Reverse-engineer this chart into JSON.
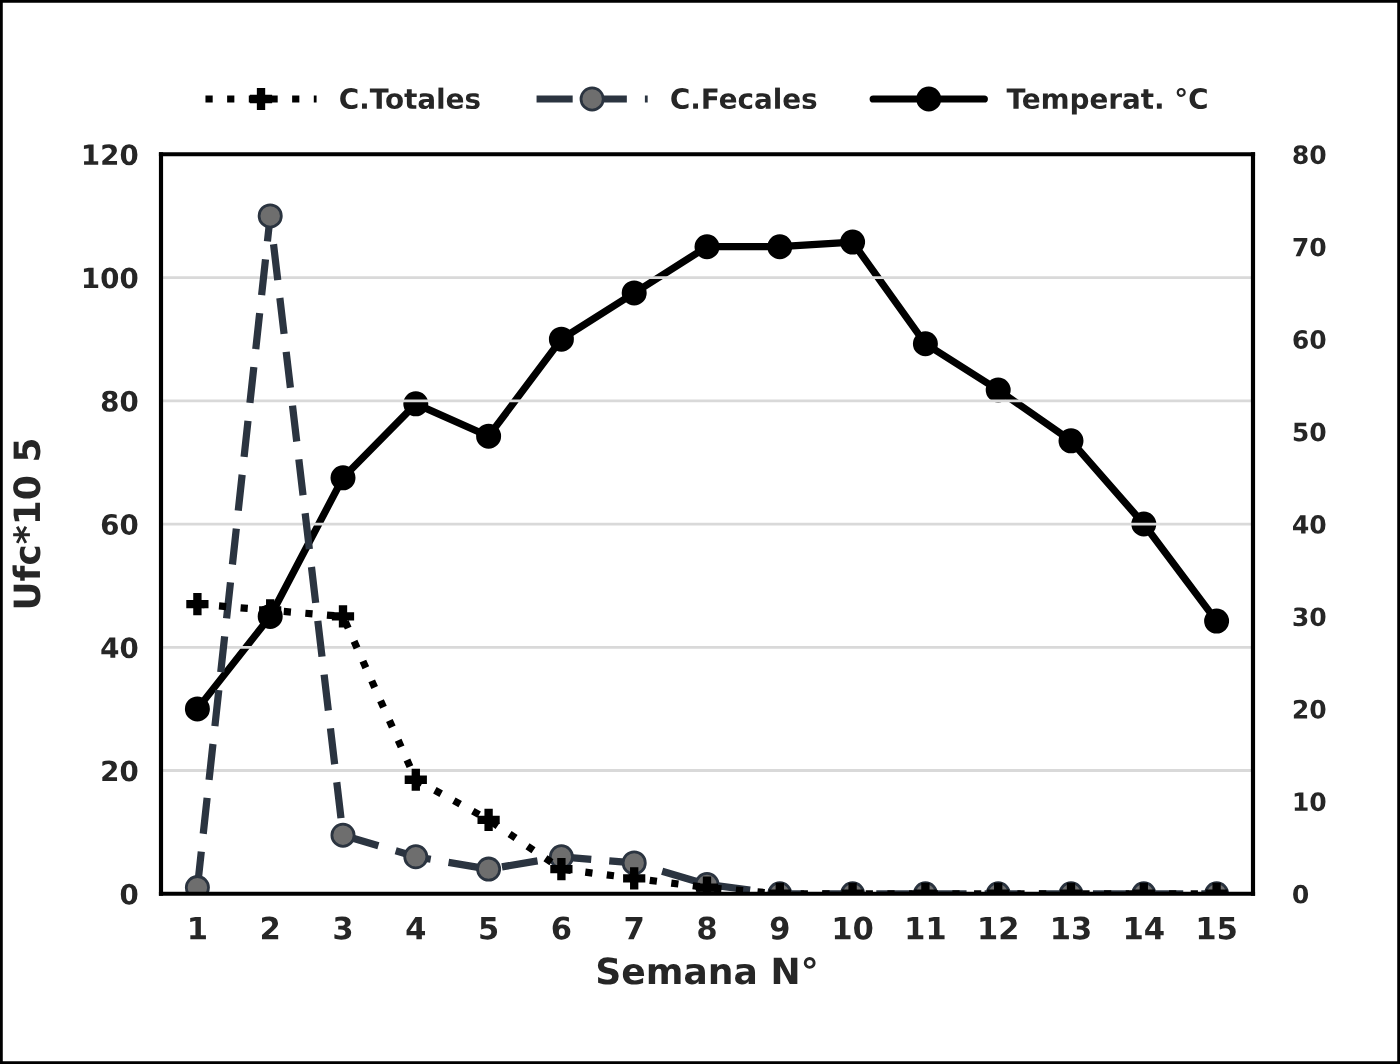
{
  "chart_data": {
    "type": "line",
    "xlabel": "Semana N°",
    "ylabel": "Ufc*10 5",
    "categories": [
      "1",
      "2",
      "3",
      "4",
      "5",
      "6",
      "7",
      "8",
      "9",
      "10",
      "11",
      "12",
      "13",
      "14",
      "15"
    ],
    "series": [
      {
        "name": "C.Totales",
        "color": "#000000",
        "marker": "cross",
        "line_style": "dotted",
        "values": [
          47,
          46,
          45,
          18.5,
          12,
          4,
          2.5,
          1,
          0,
          0,
          0,
          0,
          0,
          0,
          0
        ]
      },
      {
        "name": "C.Fecales",
        "color": "#2b3440",
        "marker": "circle",
        "line_style": "dashed",
        "values": [
          1,
          110,
          9.5,
          6,
          4,
          6,
          5,
          1.5,
          0,
          0,
          0,
          0,
          0,
          0,
          0
        ]
      },
      {
        "name": "Temperat. °C",
        "color": "#000000",
        "marker": "circle",
        "line_style": "solid",
        "axis": "y2",
        "values": [
          20,
          30,
          45,
          53,
          49.5,
          60,
          65,
          70,
          70,
          70.5,
          59.5,
          54.5,
          49,
          40,
          29.5
        ]
      }
    ],
    "ylim": [
      0,
      120
    ],
    "yticks": [
      0,
      20,
      40,
      60,
      80,
      100,
      120
    ],
    "y2lim": [
      0,
      80
    ],
    "y2ticks": [
      0,
      10,
      20,
      30,
      40,
      50,
      60,
      70,
      80
    ],
    "grid": "y",
    "legend": "top"
  }
}
